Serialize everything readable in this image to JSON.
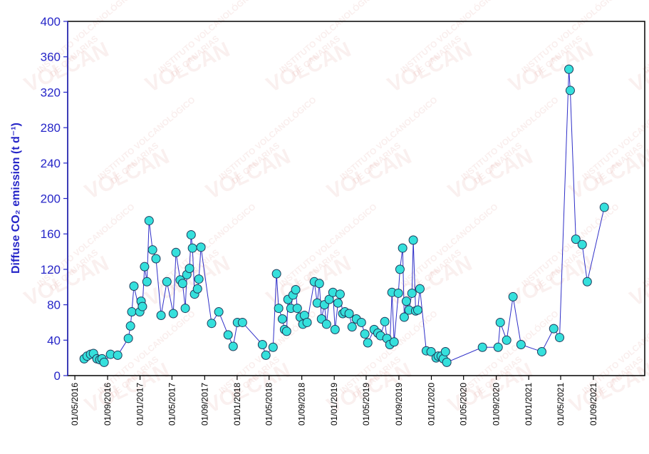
{
  "chart_data": {
    "type": "line",
    "watermark": [
      "VOLCAN",
      "INSTITUTO VOLCANOLÓGICO",
      "DE CANARIAS"
    ],
    "y_label": "Diffuse CO₂ emission (t d⁻¹)",
    "xlim": [
      "2016-04-04",
      "2022-03-13"
    ],
    "ylim": [
      0,
      400
    ],
    "yticks": [
      0,
      40,
      80,
      120,
      160,
      200,
      240,
      280,
      320,
      360,
      400
    ],
    "xticks": [
      {
        "value": "2016-05-01",
        "label": "01/05/2016"
      },
      {
        "value": "2016-09-01",
        "label": "01/09/2016"
      },
      {
        "value": "2017-01-01",
        "label": "01/01/2017"
      },
      {
        "value": "2017-05-01",
        "label": "01/05/2017"
      },
      {
        "value": "2017-09-01",
        "label": "01/09/2017"
      },
      {
        "value": "2018-01-01",
        "label": "01/01/2018"
      },
      {
        "value": "2018-05-01",
        "label": "01/05/2018"
      },
      {
        "value": "2018-09-01",
        "label": "01/09/2018"
      },
      {
        "value": "2019-01-01",
        "label": "01/01/2019"
      },
      {
        "value": "2019-05-01",
        "label": "01/05/2019"
      },
      {
        "value": "2019-09-01",
        "label": "01/09/2019"
      },
      {
        "value": "2020-01-01",
        "label": "01/01/2020"
      },
      {
        "value": "2020-05-01",
        "label": "01/05/2020"
      },
      {
        "value": "2020-09-01",
        "label": "01/09/2020"
      },
      {
        "value": "2021-01-01",
        "label": "01/01/2021"
      },
      {
        "value": "2021-05-01",
        "label": "01/05/2021"
      },
      {
        "value": "2021-09-01",
        "label": "01/09/2021"
      }
    ],
    "x": [
      "2016-06-05",
      "2016-06-16",
      "2016-06-29",
      "2016-07-10",
      "2016-07-23",
      "2016-08-03",
      "2016-08-11",
      "2016-08-19",
      "2016-09-12",
      "2016-10-09",
      "2016-11-18",
      "2016-11-26",
      "2016-12-01",
      "2016-12-09",
      "2016-12-31",
      "2017-01-05",
      "2017-01-10",
      "2017-01-18",
      "2017-01-27",
      "2017-02-04",
      "2017-02-17",
      "2017-03-02",
      "2017-03-21",
      "2017-04-12",
      "2017-05-06",
      "2017-05-16",
      "2017-06-01",
      "2017-06-10",
      "2017-06-20",
      "2017-06-26",
      "2017-07-06",
      "2017-07-12",
      "2017-07-17",
      "2017-07-25",
      "2017-08-05",
      "2017-08-10",
      "2017-08-18",
      "2017-09-27",
      "2017-10-24",
      "2017-11-28",
      "2017-12-17",
      "2018-01-02",
      "2018-01-21",
      "2018-04-06",
      "2018-04-19",
      "2018-05-16",
      "2018-05-29",
      "2018-06-06",
      "2018-06-20",
      "2018-06-28",
      "2018-07-06",
      "2018-07-11",
      "2018-07-22",
      "2018-07-30",
      "2018-08-09",
      "2018-08-15",
      "2018-08-26",
      "2018-09-05",
      "2018-09-11",
      "2018-09-21",
      "2018-10-18",
      "2018-10-29",
      "2018-11-06",
      "2018-11-14",
      "2018-11-25",
      "2018-12-03",
      "2018-12-13",
      "2018-12-27",
      "2019-01-04",
      "2019-01-15",
      "2019-01-23",
      "2019-02-02",
      "2019-02-10",
      "2019-02-26",
      "2019-03-09",
      "2019-03-25",
      "2019-04-13",
      "2019-04-26",
      "2019-05-07",
      "2019-05-31",
      "2019-06-14",
      "2019-06-24",
      "2019-07-10",
      "2019-07-18",
      "2019-07-29",
      "2019-08-06",
      "2019-08-14",
      "2019-08-30",
      "2019-09-05",
      "2019-09-15",
      "2019-09-21",
      "2019-09-29",
      "2019-10-09",
      "2019-10-20",
      "2019-10-25",
      "2019-11-03",
      "2019-11-11",
      "2019-11-19",
      "2019-12-13",
      "2019-12-31",
      "2020-01-19",
      "2020-01-27",
      "2020-02-07",
      "2020-02-15",
      "2020-02-23",
      "2020-02-28",
      "2020-07-11",
      "2020-09-08",
      "2020-09-16",
      "2020-10-10",
      "2020-11-03",
      "2020-12-03",
      "2021-02-19",
      "2021-04-05",
      "2021-04-27",
      "2021-06-01",
      "2021-06-06",
      "2021-06-27",
      "2021-07-21",
      "2021-08-09",
      "2021-10-12"
    ],
    "series": [
      {
        "color": "#2f2fc8",
        "marker_color": "#35e0dc",
        "values": [
          19,
          22,
          24,
          25,
          19,
          18,
          19,
          15,
          24,
          23,
          42,
          56,
          72,
          101,
          72,
          84,
          78,
          123,
          106,
          175,
          142,
          132,
          68,
          106,
          70,
          139,
          108,
          104,
          76,
          114,
          121,
          159,
          144,
          92,
          98,
          109,
          145,
          59,
          72,
          46,
          33,
          60,
          60,
          35,
          23,
          32,
          115,
          76,
          64,
          52,
          50,
          86,
          76,
          91,
          97,
          76,
          66,
          58,
          68,
          60,
          106,
          82,
          104,
          64,
          80,
          58,
          86,
          94,
          52,
          82,
          92,
          70,
          72,
          70,
          55,
          64,
          60,
          47,
          37,
          52,
          48,
          45,
          61,
          42,
          35,
          94,
          38,
          93,
          120,
          144,
          66,
          84,
          74,
          93,
          153,
          73,
          74,
          98,
          28,
          27,
          20,
          22,
          22,
          19,
          27,
          15,
          32,
          32,
          60,
          40,
          89,
          35,
          27,
          53,
          43,
          346,
          322,
          154,
          148,
          106,
          190
        ]
      }
    ]
  }
}
